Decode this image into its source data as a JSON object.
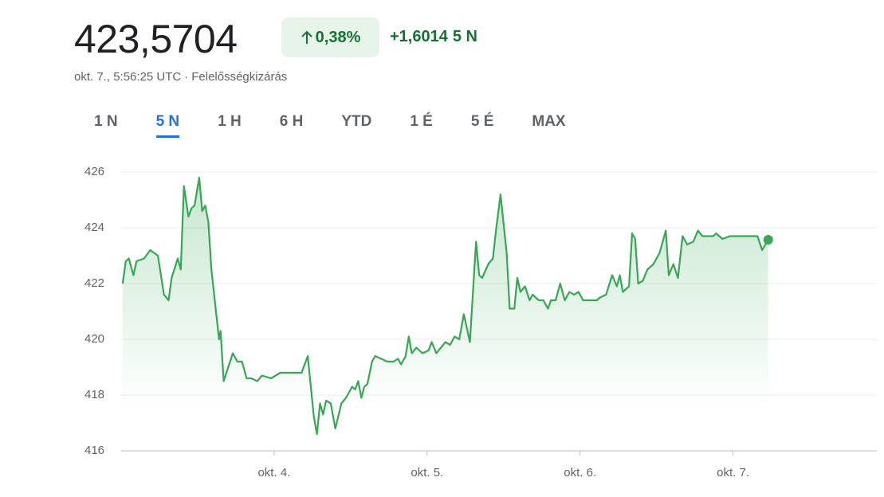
{
  "header": {
    "price": "423,5704",
    "change": "0,38%",
    "change_abs": "+1,6014",
    "change_period": "5 N",
    "timestamp": "okt. 7., 5:56:25 UTC",
    "separator": "·",
    "disclaimer": "Felelősségkizárás"
  },
  "tabs": [
    "1 N",
    "5 N",
    "1 H",
    "6 H",
    "YTD",
    "1 É",
    "5 É",
    "MAX"
  ],
  "active_tab": 1,
  "chart_data": {
    "type": "line",
    "color": "#34a853",
    "grid": true,
    "x": [
      3.01,
      3.03,
      3.05,
      3.08,
      3.1,
      3.15,
      3.19,
      3.24,
      3.28,
      3.31,
      3.33,
      3.37,
      3.39,
      3.41,
      3.44,
      3.46,
      3.48,
      3.51,
      3.53,
      3.55,
      3.57,
      3.59,
      3.64,
      3.65,
      3.67,
      3.73,
      3.76,
      3.79,
      3.82,
      3.85,
      3.89,
      3.92,
      3.98,
      4.04,
      4.11,
      4.17,
      4.18,
      4.22,
      4.26,
      4.28,
      4.3,
      4.32,
      4.34,
      4.37,
      4.4,
      4.44,
      4.47,
      4.51,
      4.53,
      4.55,
      4.57,
      4.59,
      4.61,
      4.64,
      4.66,
      4.7,
      4.74,
      4.78,
      4.81,
      4.83,
      4.86,
      4.88,
      4.9,
      4.93,
      4.97,
      5.01,
      5.03,
      5.06,
      5.09,
      5.12,
      5.15,
      5.18,
      5.21,
      5.24,
      5.28,
      5.32,
      5.34,
      5.36,
      5.4,
      5.43,
      5.45,
      5.48,
      5.52,
      5.54,
      5.57,
      5.59,
      5.61,
      5.64,
      5.67,
      5.69,
      5.73,
      5.76,
      5.79,
      5.81,
      5.84,
      5.87,
      5.9,
      5.93,
      5.96,
      5.99,
      6.02,
      6.07,
      6.11,
      6.13,
      6.17,
      6.21,
      6.24,
      6.26,
      6.28,
      6.32,
      6.34,
      6.36,
      6.38,
      6.41,
      6.44,
      6.48,
      6.52,
      6.56,
      6.58,
      6.61,
      6.64,
      6.67,
      6.7,
      6.74,
      6.77,
      6.8,
      6.84,
      6.87,
      6.89,
      6.93,
      6.98,
      7.03,
      7.08,
      7.14,
      7.16,
      7.19,
      7.23
    ],
    "values": [
      422.0,
      422.8,
      422.9,
      422.3,
      422.8,
      422.9,
      423.2,
      423.0,
      421.6,
      421.4,
      422.2,
      422.9,
      422.5,
      425.5,
      424.4,
      424.7,
      424.8,
      425.8,
      424.6,
      424.8,
      424.2,
      422.5,
      420.0,
      420.3,
      418.5,
      419.5,
      419.2,
      419.2,
      418.6,
      418.6,
      418.5,
      418.7,
      418.6,
      418.8,
      418.8,
      418.8,
      418.8,
      419.4,
      417.2,
      416.6,
      417.7,
      417.3,
      417.8,
      417.7,
      416.8,
      417.7,
      417.9,
      418.3,
      418.2,
      418.5,
      417.9,
      418.3,
      418.4,
      419.2,
      419.4,
      419.3,
      419.2,
      419.2,
      419.3,
      419.1,
      419.4,
      420.1,
      419.5,
      419.7,
      419.5,
      419.6,
      419.9,
      419.5,
      419.7,
      419.9,
      419.8,
      420.1,
      420.0,
      420.9,
      419.9,
      423.5,
      422.3,
      422.2,
      422.7,
      422.9,
      423.9,
      425.2,
      423.1,
      421.1,
      421.1,
      422.2,
      421.7,
      421.9,
      421.4,
      421.6,
      421.4,
      421.4,
      421.1,
      421.4,
      421.4,
      422.0,
      421.4,
      421.7,
      421.6,
      421.7,
      421.4,
      421.4,
      421.4,
      421.5,
      421.6,
      422.3,
      421.9,
      422.3,
      421.7,
      421.9,
      423.8,
      423.6,
      422.0,
      422.1,
      422.5,
      422.7,
      423.1,
      423.9,
      422.3,
      422.7,
      422.2,
      423.7,
      423.4,
      423.5,
      423.9,
      423.7,
      423.7,
      423.7,
      423.8,
      423.6,
      423.7,
      423.7,
      423.7,
      423.7,
      423.7,
      423.2,
      423.57
    ],
    "xlim": [
      3.0,
      7.94
    ],
    "xticks": [
      {
        "value": 4,
        "label": "okt. 4."
      },
      {
        "value": 5,
        "label": "okt. 5."
      },
      {
        "value": 6,
        "label": "okt. 6."
      },
      {
        "value": 7,
        "label": "okt. 7."
      }
    ],
    "ylim": [
      416,
      426
    ],
    "yticks": [
      416,
      418,
      420,
      422,
      424,
      426
    ]
  }
}
